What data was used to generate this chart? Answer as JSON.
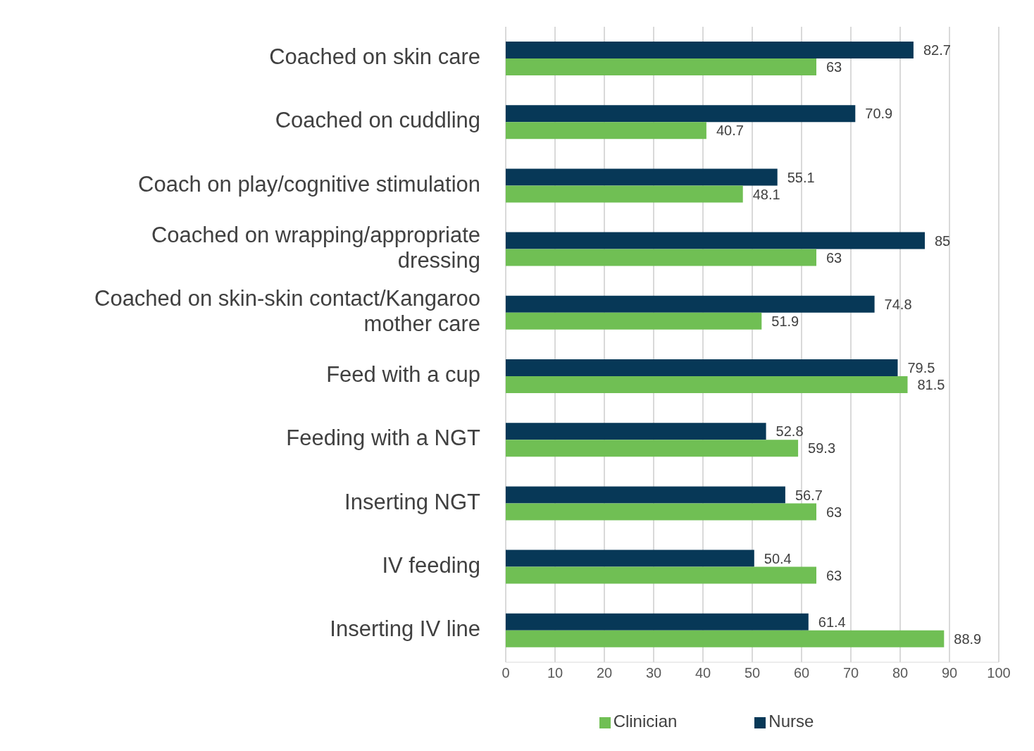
{
  "chart_data": {
    "type": "bar",
    "orientation": "horizontal",
    "categories": [
      "Coached on skin care",
      "Coached on cuddling",
      "Coach on play/cognitive stimulation",
      "Coached on wrapping/appropriate dressing",
      "Coached on skin-skin contact/Kangaroo mother care",
      "Feed with a cup",
      "Feeding with a NGT",
      "Inserting NGT",
      "IV feeding",
      "Inserting IV line"
    ],
    "series": [
      {
        "name": "Nurse",
        "color": "#073857",
        "values": [
          82.7,
          70.9,
          55.1,
          85,
          74.8,
          79.5,
          52.8,
          56.7,
          50.4,
          61.4
        ]
      },
      {
        "name": "Clinician",
        "color": "#70bf54",
        "values": [
          63,
          40.7,
          48.1,
          63,
          51.9,
          81.5,
          59.3,
          63,
          63,
          88.9
        ]
      }
    ],
    "xlim": [
      0,
      100
    ],
    "xticks": [
      0,
      10,
      20,
      30,
      40,
      50,
      60,
      70,
      80,
      90,
      100
    ],
    "grid": "x",
    "legend": "bottom",
    "data_labels": true
  }
}
